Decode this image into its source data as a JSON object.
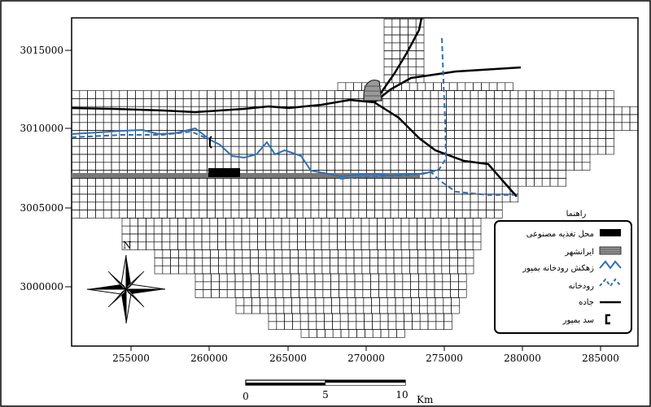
{
  "map": {
    "y_ticks": [
      "3015000",
      "3010000",
      "3005000",
      "3000000"
    ],
    "x_ticks": [
      "255000",
      "260000",
      "265000",
      "270000",
      "275000",
      "280000",
      "285000"
    ],
    "north_label": "N",
    "scale": {
      "labels": [
        "0",
        "5",
        "10"
      ],
      "unit": "Km"
    },
    "legend": {
      "title": "راهنما",
      "items": [
        {
          "label": "محل تغذیه مصنوعی",
          "icon": "solid-black-rect"
        },
        {
          "label": "ایرانشهر",
          "icon": "hatched-gray-rect"
        },
        {
          "label": "زهکش رودخانه بمپور",
          "icon": "blue-solid-wave"
        },
        {
          "label": "رودخانه",
          "icon": "blue-dashed-wave"
        },
        {
          "label": "جاده",
          "icon": "black-line"
        },
        {
          "label": "سد بمپور",
          "icon": "dam-bracket"
        }
      ]
    },
    "colors": {
      "river": "#2f6fb3",
      "grid": "#000000",
      "frame": "#000000"
    }
  }
}
